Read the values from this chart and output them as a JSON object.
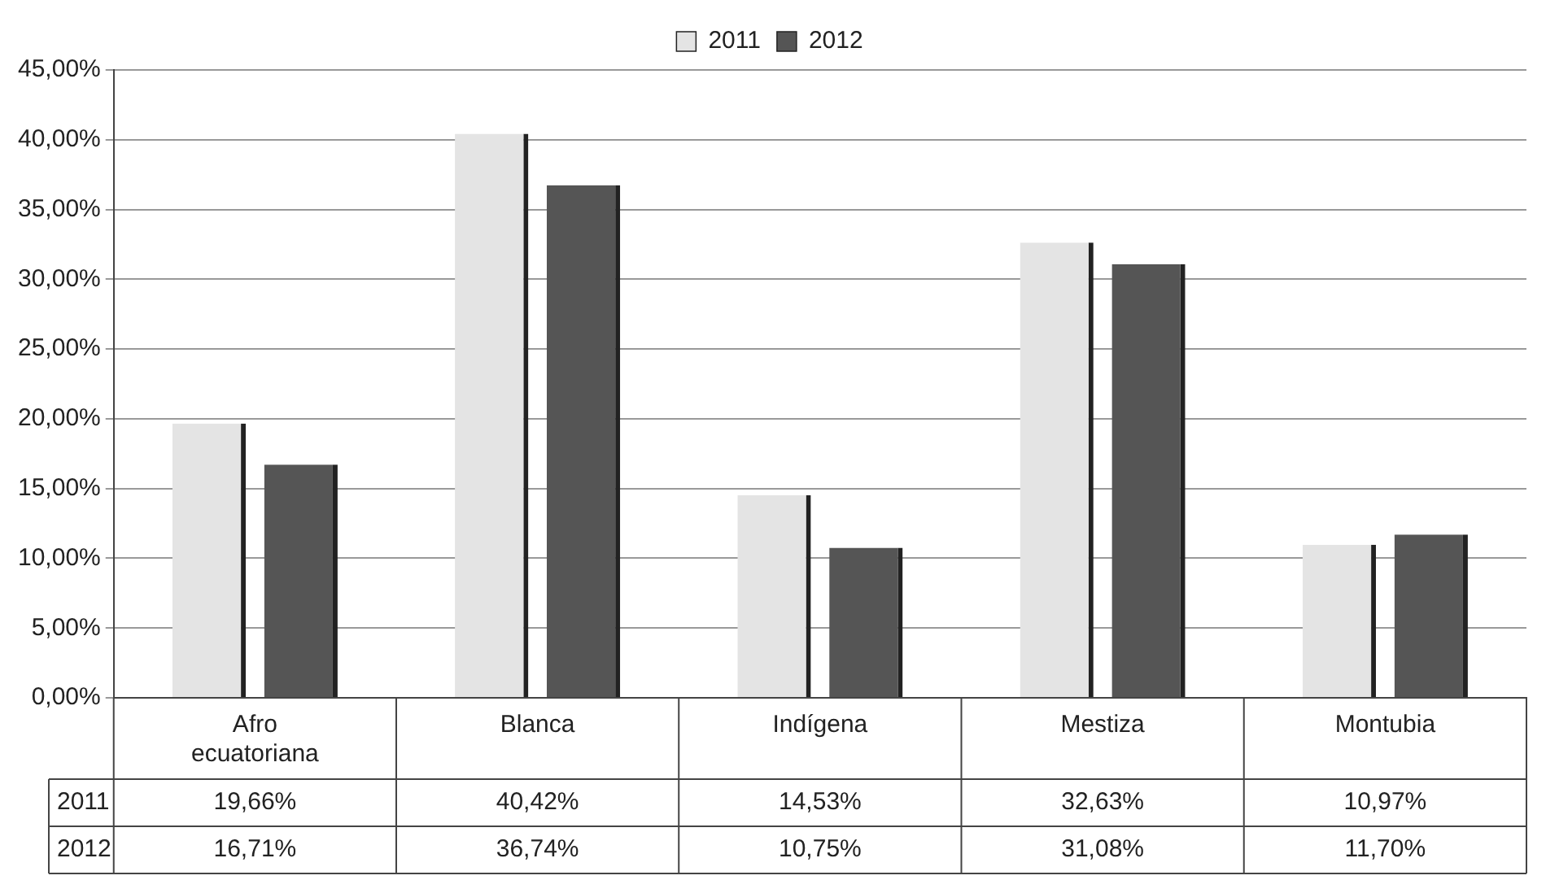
{
  "chart_data": {
    "type": "bar",
    "categories": [
      "Afro ecuatoriana",
      "Blanca",
      "Indígena",
      "Mestiza",
      "Montubia"
    ],
    "series": [
      {
        "name": "2011",
        "color": "#e4e4e4",
        "values": [
          19.66,
          40.42,
          14.53,
          32.63,
          10.97
        ],
        "value_labels": [
          "19,66%",
          "40,42%",
          "14,53%",
          "32,63%",
          "10,97%"
        ]
      },
      {
        "name": "2012",
        "color": "#555555",
        "values": [
          16.71,
          36.74,
          10.75,
          31.08,
          11.7
        ],
        "value_labels": [
          "16,71%",
          "36,74%",
          "10,75%",
          "31,08%",
          "11,70%"
        ]
      }
    ],
    "ylim": [
      0,
      45
    ],
    "yticks": [
      {
        "value": 0,
        "label": "0,00%"
      },
      {
        "value": 5,
        "label": "5,00%"
      },
      {
        "value": 10,
        "label": "10,00%"
      },
      {
        "value": 15,
        "label": "15,00%"
      },
      {
        "value": 20,
        "label": "20,00%"
      },
      {
        "value": 25,
        "label": "25,00%"
      },
      {
        "value": 30,
        "label": "30,00%"
      },
      {
        "value": 35,
        "label": "35,00%"
      },
      {
        "value": 40,
        "label": "40,00%"
      },
      {
        "value": 45,
        "label": "45,00%"
      }
    ],
    "grid": "y",
    "legend": "top"
  }
}
